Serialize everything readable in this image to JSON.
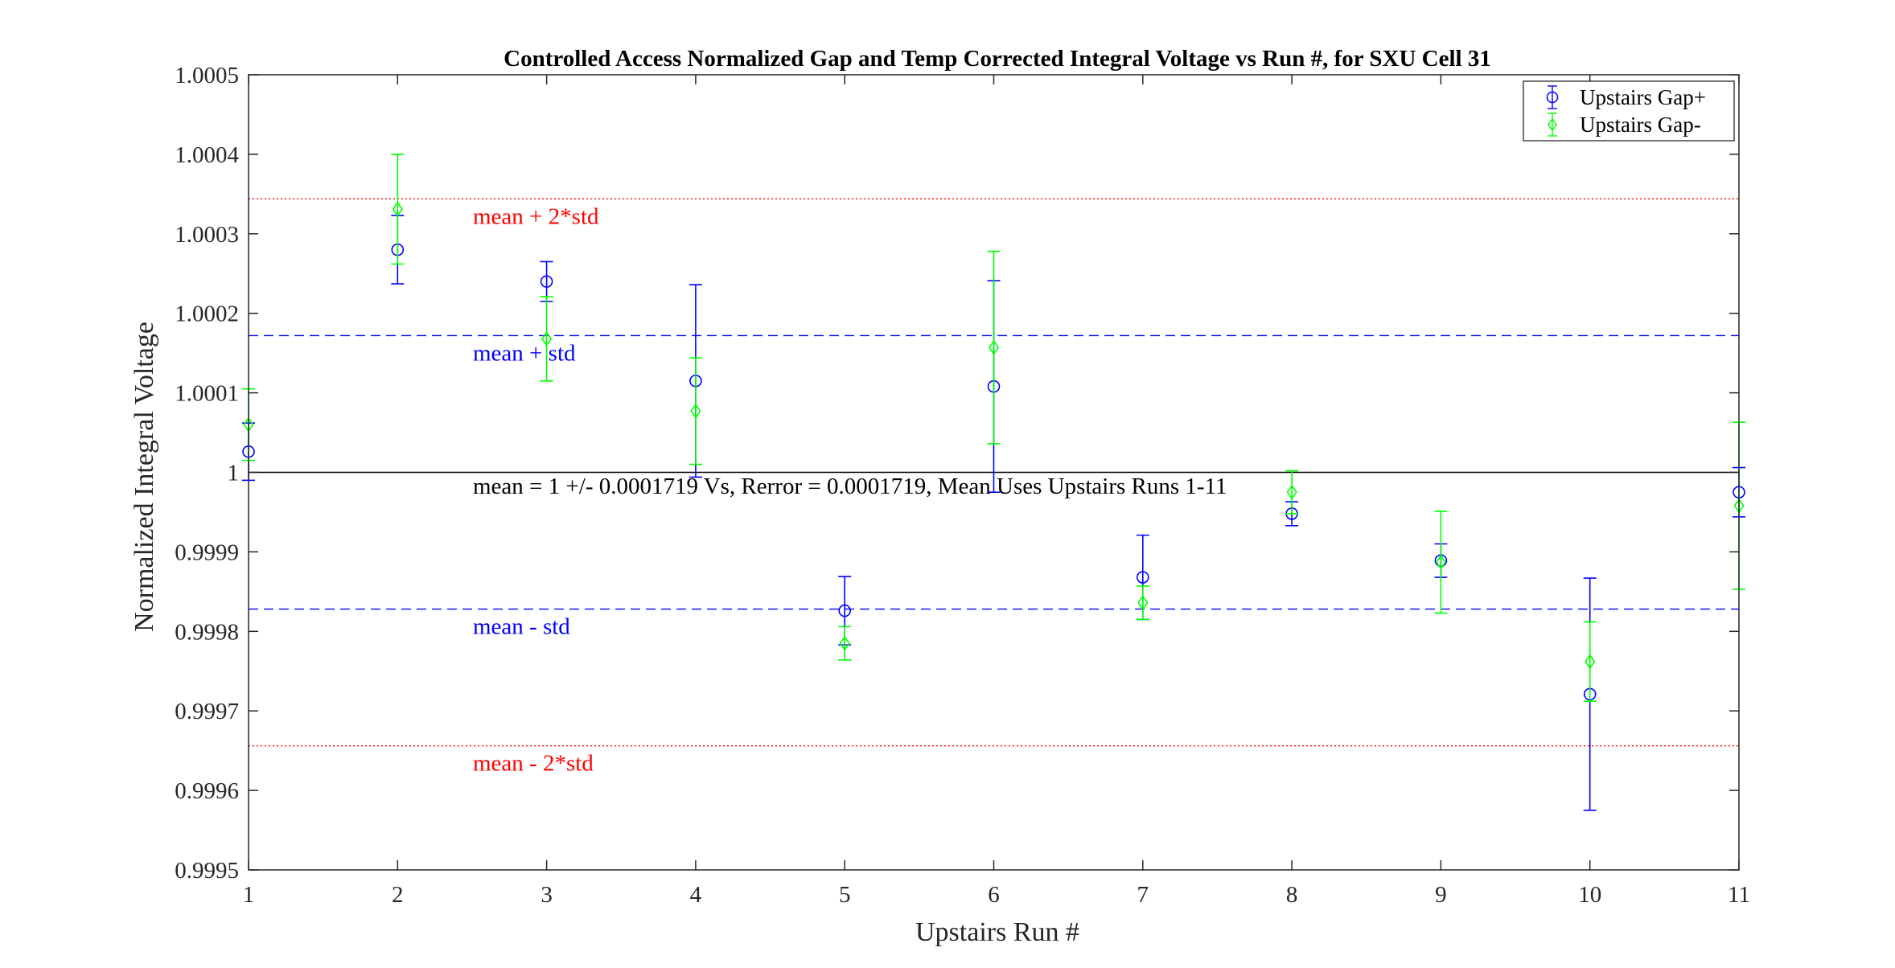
{
  "chart_data": {
    "type": "scatter",
    "title": "Controlled Access Normalized Gap and Temp Corrected Integral Voltage vs Run #, for SXU Cell 31",
    "xlabel": "Upstairs Run #",
    "ylabel": "Normalized Integral Voltage",
    "xlim": [
      1,
      11
    ],
    "ylim": [
      0.9995,
      1.0005
    ],
    "x_ticks": [
      1,
      2,
      3,
      4,
      5,
      6,
      7,
      8,
      9,
      10,
      11
    ],
    "x_tick_labels": [
      "1",
      "2",
      "3",
      "4",
      "5",
      "6",
      "7",
      "8",
      "9",
      "10",
      "11"
    ],
    "y_ticks": [
      0.9995,
      0.9996,
      0.9997,
      0.9998,
      0.9999,
      1.0,
      1.0001,
      1.0002,
      1.0003,
      1.0004,
      1.0005
    ],
    "y_tick_labels": [
      "0.9995",
      "0.9996",
      "0.9997",
      "0.9998",
      "0.9999",
      "1",
      "1.0001",
      "1.0002",
      "1.0003",
      "1.0004",
      "1.0005"
    ],
    "grid": false,
    "legend_position": "top-right",
    "series": [
      {
        "name": "Upstairs Gap+",
        "color": "#0000ff",
        "marker": "circle",
        "x": [
          1,
          2,
          3,
          4,
          5,
          6,
          7,
          8,
          9,
          10,
          11
        ],
        "y": [
          1.000026,
          1.00028,
          1.00024,
          1.000115,
          0.999826,
          1.000108,
          0.999868,
          0.999948,
          0.999889,
          0.999721,
          0.999975
        ],
        "err": [
          3.6e-05,
          4.3e-05,
          2.5e-05,
          0.000121,
          4.3e-05,
          0.000133,
          5.3e-05,
          1.5e-05,
          2.1e-05,
          0.000146,
          3.1e-05
        ]
      },
      {
        "name": "Upstairs Gap-",
        "color": "#00ff00",
        "marker": "diamond",
        "x": [
          1,
          2,
          3,
          4,
          5,
          6,
          7,
          8,
          9,
          10,
          11
        ],
        "y": [
          1.00006,
          1.000331,
          1.000168,
          1.000077,
          0.999785,
          1.000157,
          0.999836,
          0.999975,
          0.999887,
          0.999762,
          0.999958
        ],
        "err": [
          4.5e-05,
          6.9e-05,
          5.3e-05,
          6.7e-05,
          2.1e-05,
          0.000121,
          2.1e-05,
          2.7e-05,
          6.4e-05,
          5e-05,
          0.000105
        ]
      }
    ],
    "reference_lines": [
      {
        "y": 1.000344,
        "label": "mean + 2*std",
        "color": "#ff0000",
        "style": "dotted"
      },
      {
        "y": 1.000172,
        "label": "mean + std",
        "color": "#0000ff",
        "style": "dashed"
      },
      {
        "y": 1.0,
        "label": "",
        "color": "#000000",
        "style": "solid"
      },
      {
        "y": 0.999828,
        "label": "mean - std",
        "color": "#0000ff",
        "style": "dashed"
      },
      {
        "y": 0.999656,
        "label": "mean - 2*std",
        "color": "#ff0000",
        "style": "dotted"
      }
    ],
    "annotation": "mean = 1 +/- 0.0001719 Vs, Rerror = 0.0001719, Mean Uses Upstairs Runs 1-11"
  }
}
